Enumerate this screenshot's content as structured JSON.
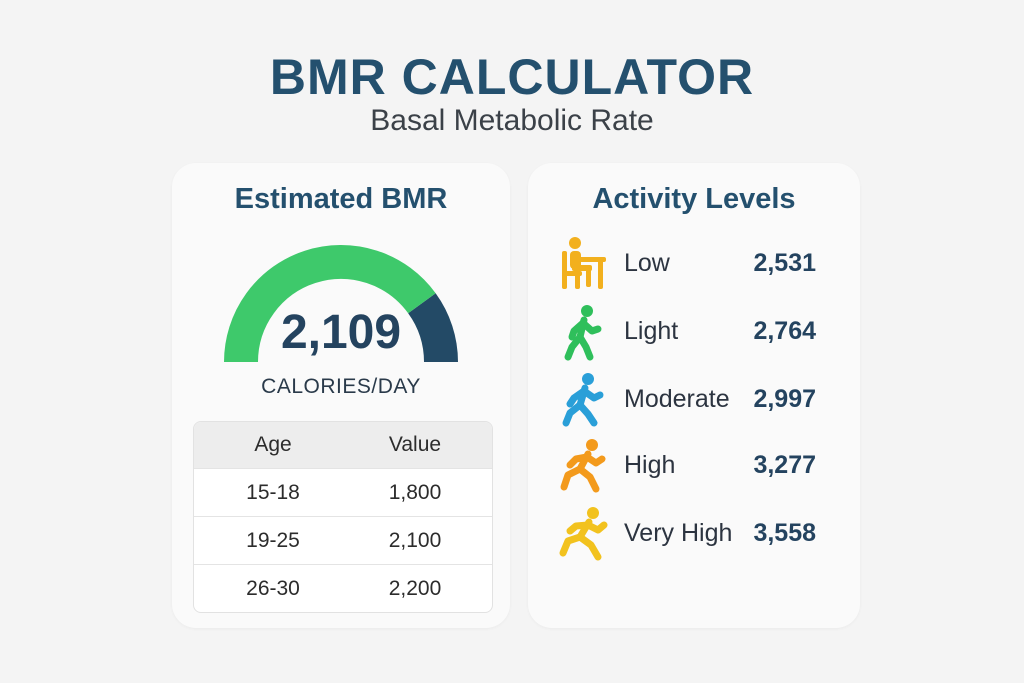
{
  "header": {
    "title": "BMR CALCULATOR",
    "subtitle": "Basal Metabolic Rate"
  },
  "bmr_card": {
    "title": "Estimated BMR",
    "value": "2,109",
    "unit": "CALORIES/DAY",
    "gauge": {
      "fill_fraction": 0.8,
      "fill_color": "#3ec96b",
      "remaining_color": "#234a66"
    },
    "table": {
      "columns": [
        "Age",
        "Value"
      ],
      "rows": [
        [
          "15-18",
          "1,800"
        ],
        [
          "19-25",
          "2,100"
        ],
        [
          "26-30",
          "2,200"
        ]
      ]
    }
  },
  "activity_card": {
    "title": "Activity Levels",
    "levels": [
      {
        "label": "Low",
        "value": "2,531",
        "icon": "sitting-person-icon",
        "color": "#f2b01e"
      },
      {
        "label": "Light",
        "value": "2,764",
        "icon": "walking-person-icon",
        "color": "#2fbf5b"
      },
      {
        "label": "Moderate",
        "value": "2,997",
        "icon": "walking-person-icon",
        "color": "#2a9fd8"
      },
      {
        "label": "High",
        "value": "3,277",
        "icon": "running-person-icon",
        "color": "#f39a1c"
      },
      {
        "label": "Very High",
        "value": "3,558",
        "icon": "running-person-icon",
        "color": "#f2c21e"
      }
    ]
  }
}
